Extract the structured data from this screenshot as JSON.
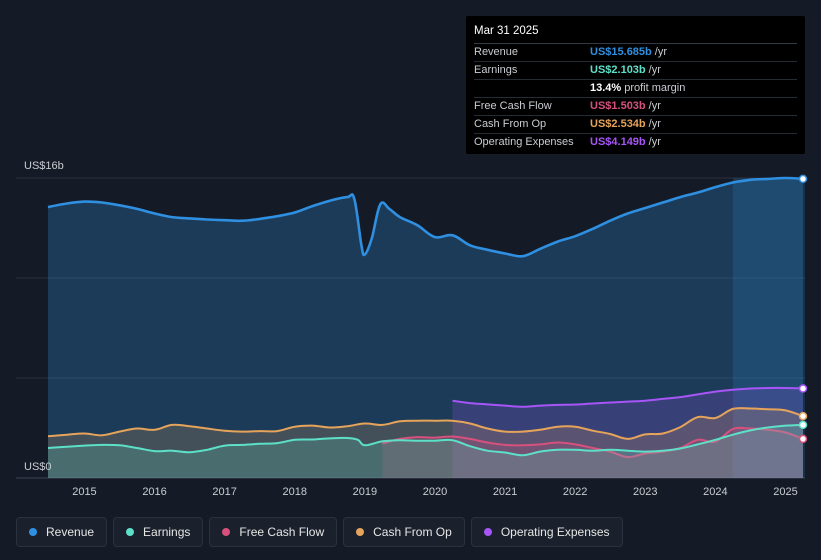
{
  "chart_data": {
    "type": "area",
    "title": "",
    "y_axis": {
      "top_label": "US$16b",
      "bottom_label": "US$0",
      "ylim": [
        0,
        16
      ]
    },
    "x_ticks": [
      "2015",
      "2016",
      "2017",
      "2018",
      "2019",
      "2020",
      "2021",
      "2022",
      "2023",
      "2024",
      "2025"
    ],
    "x_range": [
      2014.48,
      2025.25
    ],
    "forecast_shade_from": 2024.25,
    "series": [
      {
        "name": "Revenue",
        "color": "#2f8fe0",
        "fill": true,
        "end_marker": true,
        "points": [
          [
            2014.48,
            14.9
          ],
          [
            2014.75,
            15.1
          ],
          [
            2015.0,
            15.2
          ],
          [
            2015.25,
            15.15
          ],
          [
            2015.5,
            15.0
          ],
          [
            2015.75,
            14.8
          ],
          [
            2016.0,
            14.55
          ],
          [
            2016.25,
            14.35
          ],
          [
            2016.5,
            14.28
          ],
          [
            2016.75,
            14.22
          ],
          [
            2017.0,
            14.18
          ],
          [
            2017.25,
            14.15
          ],
          [
            2017.5,
            14.25
          ],
          [
            2017.75,
            14.4
          ],
          [
            2018.0,
            14.6
          ],
          [
            2018.25,
            14.95
          ],
          [
            2018.5,
            15.25
          ],
          [
            2018.75,
            15.45
          ],
          [
            2018.85,
            15.35
          ],
          [
            2018.95,
            12.8
          ],
          [
            2019.0,
            12.3
          ],
          [
            2019.1,
            13.2
          ],
          [
            2019.22,
            15.05
          ],
          [
            2019.35,
            14.8
          ],
          [
            2019.5,
            14.35
          ],
          [
            2019.75,
            13.9
          ],
          [
            2020.0,
            13.25
          ],
          [
            2020.25,
            13.35
          ],
          [
            2020.5,
            12.8
          ],
          [
            2020.75,
            12.55
          ],
          [
            2021.0,
            12.35
          ],
          [
            2021.25,
            12.2
          ],
          [
            2021.5,
            12.6
          ],
          [
            2021.75,
            13.0
          ],
          [
            2022.0,
            13.3
          ],
          [
            2022.25,
            13.7
          ],
          [
            2022.5,
            14.15
          ],
          [
            2022.75,
            14.55
          ],
          [
            2023.0,
            14.85
          ],
          [
            2023.25,
            15.15
          ],
          [
            2023.5,
            15.45
          ],
          [
            2023.75,
            15.7
          ],
          [
            2024.0,
            16.0
          ],
          [
            2024.25,
            16.25
          ],
          [
            2024.5,
            16.4
          ],
          [
            2024.75,
            16.45
          ],
          [
            2025.0,
            16.5
          ],
          [
            2025.25,
            16.45
          ]
        ],
        "tooltip_value": "US$15.685b"
      },
      {
        "name": "Operating Expenses",
        "color": "#a855f7",
        "fill": true,
        "end_marker": true,
        "points": [
          [
            2020.25,
            4.25
          ],
          [
            2020.5,
            4.12
          ],
          [
            2020.75,
            4.05
          ],
          [
            2021.0,
            3.98
          ],
          [
            2021.25,
            3.92
          ],
          [
            2021.5,
            3.98
          ],
          [
            2021.75,
            4.02
          ],
          [
            2022.0,
            4.04
          ],
          [
            2022.25,
            4.1
          ],
          [
            2022.5,
            4.15
          ],
          [
            2022.75,
            4.2
          ],
          [
            2023.0,
            4.25
          ],
          [
            2023.25,
            4.35
          ],
          [
            2023.5,
            4.45
          ],
          [
            2023.75,
            4.6
          ],
          [
            2024.0,
            4.75
          ],
          [
            2024.25,
            4.85
          ],
          [
            2024.5,
            4.92
          ],
          [
            2024.75,
            4.95
          ],
          [
            2025.0,
            4.95
          ],
          [
            2025.25,
            4.92
          ]
        ],
        "tooltip_value": "US$4.149b"
      },
      {
        "name": "Cash From Op",
        "color": "#e6a45a",
        "fill": true,
        "end_marker": true,
        "points": [
          [
            2014.48,
            2.3
          ],
          [
            2014.75,
            2.38
          ],
          [
            2015.0,
            2.45
          ],
          [
            2015.25,
            2.35
          ],
          [
            2015.5,
            2.55
          ],
          [
            2015.75,
            2.72
          ],
          [
            2016.0,
            2.65
          ],
          [
            2016.25,
            2.92
          ],
          [
            2016.5,
            2.85
          ],
          [
            2016.75,
            2.72
          ],
          [
            2017.0,
            2.6
          ],
          [
            2017.25,
            2.55
          ],
          [
            2017.5,
            2.58
          ],
          [
            2017.75,
            2.58
          ],
          [
            2018.0,
            2.82
          ],
          [
            2018.25,
            2.88
          ],
          [
            2018.5,
            2.78
          ],
          [
            2018.75,
            2.85
          ],
          [
            2019.0,
            3.0
          ],
          [
            2019.25,
            2.92
          ],
          [
            2019.5,
            3.12
          ],
          [
            2019.75,
            3.15
          ],
          [
            2020.0,
            3.15
          ],
          [
            2020.25,
            3.15
          ],
          [
            2020.5,
            3.0
          ],
          [
            2020.75,
            2.72
          ],
          [
            2021.0,
            2.55
          ],
          [
            2021.25,
            2.55
          ],
          [
            2021.5,
            2.65
          ],
          [
            2021.75,
            2.82
          ],
          [
            2022.0,
            2.82
          ],
          [
            2022.25,
            2.6
          ],
          [
            2022.5,
            2.42
          ],
          [
            2022.75,
            2.15
          ],
          [
            2023.0,
            2.4
          ],
          [
            2023.25,
            2.45
          ],
          [
            2023.5,
            2.8
          ],
          [
            2023.75,
            3.35
          ],
          [
            2024.0,
            3.3
          ],
          [
            2024.25,
            3.8
          ],
          [
            2024.5,
            3.82
          ],
          [
            2024.75,
            3.78
          ],
          [
            2025.0,
            3.72
          ],
          [
            2025.25,
            3.4
          ]
        ],
        "tooltip_value": "US$2.534b"
      },
      {
        "name": "Free Cash Flow",
        "color": "#d6517d",
        "fill": true,
        "end_marker": true,
        "points": [
          [
            2019.25,
            1.9
          ],
          [
            2019.5,
            2.15
          ],
          [
            2019.75,
            2.25
          ],
          [
            2020.0,
            2.22
          ],
          [
            2020.25,
            2.28
          ],
          [
            2020.5,
            2.15
          ],
          [
            2020.75,
            1.95
          ],
          [
            2021.0,
            1.82
          ],
          [
            2021.25,
            1.8
          ],
          [
            2021.5,
            1.85
          ],
          [
            2021.75,
            1.95
          ],
          [
            2022.0,
            1.85
          ],
          [
            2022.25,
            1.65
          ],
          [
            2022.5,
            1.45
          ],
          [
            2022.75,
            1.15
          ],
          [
            2023.0,
            1.35
          ],
          [
            2023.25,
            1.45
          ],
          [
            2023.5,
            1.65
          ],
          [
            2023.75,
            2.1
          ],
          [
            2024.0,
            2.0
          ],
          [
            2024.25,
            2.7
          ],
          [
            2024.5,
            2.72
          ],
          [
            2024.75,
            2.65
          ],
          [
            2025.0,
            2.5
          ],
          [
            2025.25,
            2.15
          ]
        ],
        "tooltip_value": "US$1.503b"
      },
      {
        "name": "Earnings",
        "color": "#5de0c8",
        "fill": true,
        "end_marker": true,
        "points": [
          [
            2014.48,
            1.65
          ],
          [
            2014.75,
            1.72
          ],
          [
            2015.0,
            1.78
          ],
          [
            2015.25,
            1.82
          ],
          [
            2015.5,
            1.8
          ],
          [
            2015.75,
            1.65
          ],
          [
            2016.0,
            1.48
          ],
          [
            2016.25,
            1.5
          ],
          [
            2016.5,
            1.42
          ],
          [
            2016.75,
            1.55
          ],
          [
            2017.0,
            1.78
          ],
          [
            2017.25,
            1.82
          ],
          [
            2017.5,
            1.88
          ],
          [
            2017.75,
            1.92
          ],
          [
            2018.0,
            2.1
          ],
          [
            2018.25,
            2.12
          ],
          [
            2018.5,
            2.18
          ],
          [
            2018.75,
            2.2
          ],
          [
            2018.9,
            2.1
          ],
          [
            2019.0,
            1.8
          ],
          [
            2019.25,
            2.02
          ],
          [
            2019.5,
            2.08
          ],
          [
            2019.75,
            2.05
          ],
          [
            2020.0,
            2.05
          ],
          [
            2020.25,
            2.08
          ],
          [
            2020.5,
            1.75
          ],
          [
            2020.75,
            1.5
          ],
          [
            2021.0,
            1.4
          ],
          [
            2021.25,
            1.25
          ],
          [
            2021.5,
            1.45
          ],
          [
            2021.75,
            1.55
          ],
          [
            2022.0,
            1.55
          ],
          [
            2022.25,
            1.5
          ],
          [
            2022.5,
            1.55
          ],
          [
            2022.75,
            1.5
          ],
          [
            2023.0,
            1.45
          ],
          [
            2023.25,
            1.5
          ],
          [
            2023.5,
            1.62
          ],
          [
            2023.75,
            1.85
          ],
          [
            2024.0,
            2.1
          ],
          [
            2024.25,
            2.38
          ],
          [
            2024.5,
            2.62
          ],
          [
            2024.75,
            2.78
          ],
          [
            2025.0,
            2.88
          ],
          [
            2025.25,
            2.92
          ]
        ],
        "tooltip_value": "US$2.103b"
      }
    ]
  },
  "tooltip": {
    "date": "Mar 31 2025",
    "rows": [
      {
        "label": "Revenue",
        "value": "US$15.685b",
        "unit": "/yr",
        "color": "#2f8fe0"
      },
      {
        "label": "Earnings",
        "value": "US$2.103b",
        "unit": "/yr",
        "color": "#5de0c8"
      },
      {
        "label": "",
        "value": "13.4%",
        "unit": "profit margin",
        "color": "#ffffff"
      },
      {
        "label": "Free Cash Flow",
        "value": "US$1.503b",
        "unit": "/yr",
        "color": "#d6517d"
      },
      {
        "label": "Cash From Op",
        "value": "US$2.534b",
        "unit": "/yr",
        "color": "#e6a45a"
      },
      {
        "label": "Operating Expenses",
        "value": "US$4.149b",
        "unit": "/yr",
        "color": "#a855f7"
      }
    ]
  },
  "legend": [
    {
      "label": "Revenue",
      "color": "#2f8fe0"
    },
    {
      "label": "Earnings",
      "color": "#5de0c8"
    },
    {
      "label": "Free Cash Flow",
      "color": "#d6517d"
    },
    {
      "label": "Cash From Op",
      "color": "#e6a45a"
    },
    {
      "label": "Operating Expenses",
      "color": "#a855f7"
    }
  ]
}
